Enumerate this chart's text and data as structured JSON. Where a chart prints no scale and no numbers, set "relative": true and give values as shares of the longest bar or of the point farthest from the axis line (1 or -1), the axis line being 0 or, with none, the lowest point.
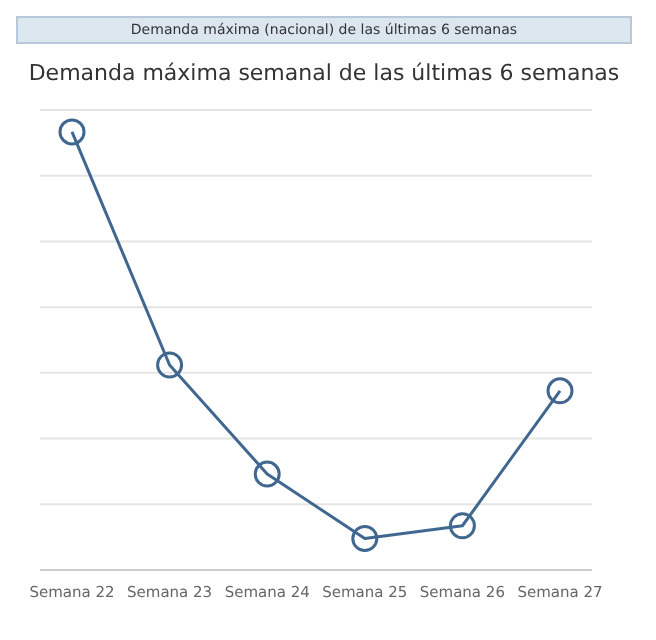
{
  "chart_data": {
    "type": "line",
    "title": "Demanda máxima semanal de las últimas 6 semanas",
    "subtitle": "Demanda máxima (nacional) de las últimas 6 semanas",
    "categories": [
      "Semana 22",
      "Semana 23",
      "Semana 24",
      "Semana 25",
      "Semana 26",
      "Semana 27"
    ],
    "series": [
      {
        "color": "#40678f",
        "values": [
          1,
          0.468,
          0.219,
          0.072,
          0.101,
          0.409
        ]
      }
    ],
    "relative": true,
    "grid": "y",
    "marker": "circle",
    "line_style": "solid"
  }
}
